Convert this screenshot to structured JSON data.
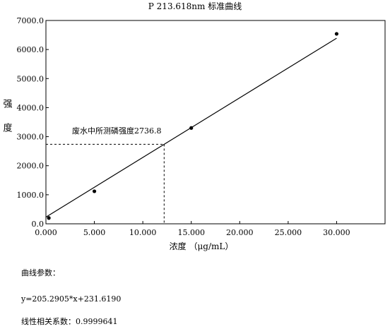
{
  "chart_data": {
    "type": "scatter",
    "title": "P 213.618nm   标准曲线",
    "xlabel": "浓度 （μg/mL）",
    "ylabel": "强度",
    "xlim": [
      0,
      35
    ],
    "ylim": [
      0,
      7000
    ],
    "x_ticks": [
      0,
      5,
      10,
      15,
      20,
      25,
      30
    ],
    "x_tick_labels": [
      "0.000",
      "5.000",
      "10.000",
      "15.000",
      "20.000",
      "25.000",
      "30.000"
    ],
    "y_ticks": [
      0,
      1000,
      2000,
      3000,
      4000,
      5000,
      6000,
      7000
    ],
    "y_tick_labels": [
      "0.0",
      "1000.0",
      "2000.0",
      "3000.0",
      "4000.0",
      "5000.0",
      "6000.0",
      "7000.0"
    ],
    "grid": false,
    "series": [
      {
        "points": [
          {
            "x": 0.3,
            "y": 200
          },
          {
            "x": 5.0,
            "y": 1120
          },
          {
            "x": 15.0,
            "y": 3300
          },
          {
            "x": 30.0,
            "y": 6540
          }
        ]
      }
    ],
    "fit_line": {
      "slope": 205.2905,
      "intercept": 231.619,
      "x_range": [
        0,
        30
      ]
    },
    "annotation": {
      "text": "废水中所测磷强度2736.8",
      "y_value": 2736.8,
      "x_value": 12.2
    }
  },
  "params": {
    "label": "曲线参数：",
    "equation": "y=205.2905*x+231.6190",
    "correlation": "线性相关系数：0.9999641"
  }
}
